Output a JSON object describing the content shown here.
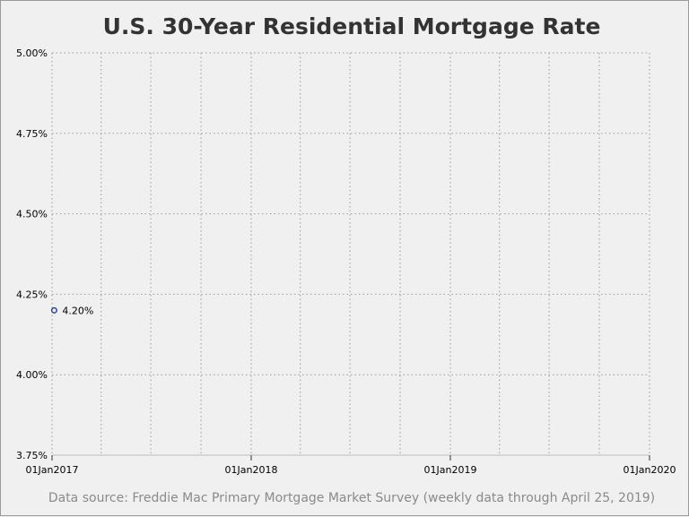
{
  "chart_data": {
    "type": "scatter",
    "title": "U.S. 30-Year Residential Mortgage Rate",
    "footnote": "Data source: Freddie Mac Primary Mortgage Market Survey (weekly data through April 25, 2019)",
    "xlabel": "",
    "ylabel": "",
    "ylim": [
      3.75,
      5.0
    ],
    "y_ticks": [
      "3.75%",
      "4.00%",
      "4.25%",
      "4.50%",
      "4.75%",
      "5.00%"
    ],
    "xlim": [
      "2017-01-01",
      "2020-01-01"
    ],
    "x_ticks": [
      "01Jan2017",
      "01Jan2018",
      "01Jan2019",
      "01Jan2020"
    ],
    "grid": true,
    "series": [
      {
        "points": [
          {
            "x": "2017-01-05",
            "y": 4.2,
            "label": "4.20%"
          }
        ]
      }
    ]
  },
  "colors": {
    "background": "#f0f0f0",
    "grid": "#9a9a9a",
    "marker": "#1f3f8f",
    "title": "#333333",
    "footnote": "#8a8a8a"
  }
}
